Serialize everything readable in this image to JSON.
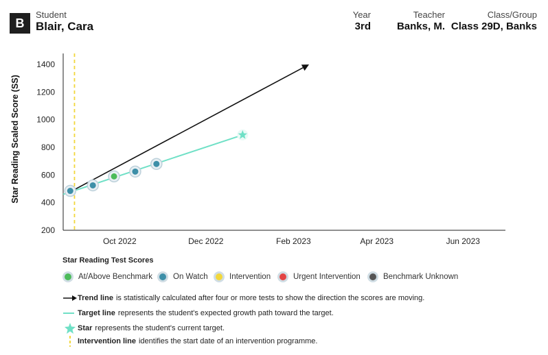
{
  "header": {
    "badge": "B",
    "student_label": "Student",
    "student_name": "Blair, Cara",
    "year_label": "Year",
    "year_value": "3rd",
    "teacher_label": "Teacher",
    "teacher_value": "Banks, M.",
    "class_label": "Class/Group",
    "class_value": "Class 29D, Banks"
  },
  "colors": {
    "benchmark": "#4cbb5a",
    "on_watch": "#3d8fa8",
    "intervention": "#f2d73b",
    "urgent": "#e34545",
    "unknown": "#555555",
    "target": "#6fe0c6",
    "trend": "#111111"
  },
  "chart_data": {
    "type": "scatter",
    "ylabel": "Star Reading Scaled Score (SS)",
    "ylim": [
      200,
      1450
    ],
    "yticks": [
      200,
      400,
      600,
      800,
      1000,
      1200,
      1400
    ],
    "xlim": [
      "2022-08-22",
      "2023-07-01"
    ],
    "xticks": [
      {
        "date": "2022-10-01",
        "label": "Oct 2022"
      },
      {
        "date": "2022-12-01",
        "label": "Dec 2022"
      },
      {
        "date": "2023-02-01",
        "label": "Feb 2023"
      },
      {
        "date": "2023-04-01",
        "label": "Apr 2023"
      },
      {
        "date": "2023-06-01",
        "label": "Jun 2023"
      }
    ],
    "scores": [
      {
        "date": "2022-08-27",
        "value": 485,
        "category": "On Watch"
      },
      {
        "date": "2022-09-12",
        "value": 525,
        "category": "On Watch"
      },
      {
        "date": "2022-09-27",
        "value": 590,
        "category": "At/Above Benchmark"
      },
      {
        "date": "2022-10-12",
        "value": 625,
        "category": "On Watch"
      },
      {
        "date": "2022-10-27",
        "value": 680,
        "category": "On Watch"
      }
    ],
    "target_line": {
      "start": {
        "date": "2022-08-22",
        "value": 460
      },
      "end": {
        "date": "2022-12-27",
        "value": 890
      }
    },
    "target_star": {
      "date": "2022-12-27",
      "value": 890
    },
    "trend_line": {
      "start": {
        "date": "2022-08-27",
        "value": 478
      },
      "end": {
        "date": "2023-02-12",
        "value": 1400
      }
    },
    "intervention_date": "2022-08-30"
  },
  "legend": {
    "title": "Star Reading Test Scores",
    "items": [
      {
        "label": "At/Above Benchmark",
        "color": "#4cbb5a"
      },
      {
        "label": "On Watch",
        "color": "#3d8fa8"
      },
      {
        "label": "Intervention",
        "color": "#f2d73b"
      },
      {
        "label": "Urgent Intervention",
        "color": "#e34545"
      },
      {
        "label": "Benchmark Unknown",
        "color": "#555555"
      }
    ]
  },
  "notes": {
    "trend_bold": "Trend line",
    "trend_text": "is statistically calculated after four or more tests to show the direction the scores are moving.",
    "target_bold": "Target line",
    "target_text": "represents the student's expected growth path toward the target.",
    "star_bold": "Star",
    "star_text": "represents the student's current target.",
    "intervention_bold": "Intervention line",
    "intervention_text": "identifies the start date of an intervention programme."
  }
}
